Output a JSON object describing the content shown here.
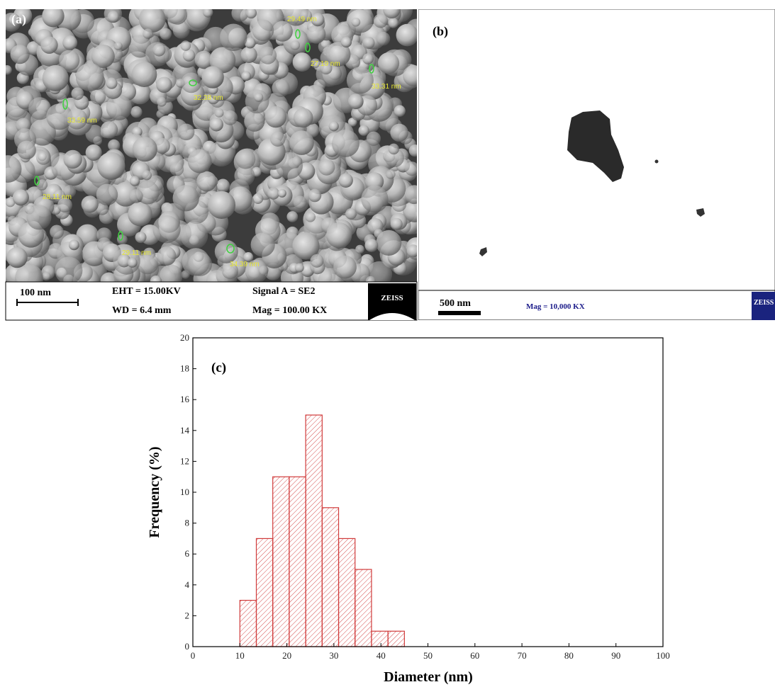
{
  "panels": {
    "a": {
      "label": "(a)",
      "measurements": [
        "29.49 nm",
        "27.19 nm",
        "32.38 nm",
        "33.31 nm",
        "33.59 nm",
        "28.11 nm",
        "29.11 nm",
        "34.39 nm"
      ],
      "scale_bar": "100 nm",
      "eht": "EHT = 15.00KV",
      "signal": "Signal A = SE2",
      "wd": "WD = 6.4 mm",
      "mag": "Mag = 100.00 KX",
      "logo": "ZEISS"
    },
    "b": {
      "label": "(b)",
      "scale_bar": "500 nm",
      "mag": "Mag = 10,000 KX",
      "logo": "ZEISS"
    }
  },
  "chart_data": {
    "type": "histogram",
    "label": "(c)",
    "x_label": "Diameter (nm)",
    "y_label": "Frequency (%)",
    "bins": [
      10,
      13.5,
      17,
      20.5,
      24,
      27.5,
      31,
      34.5,
      38,
      41.5,
      45
    ],
    "values": [
      3,
      7,
      11,
      11,
      15,
      9,
      7,
      5,
      1,
      1
    ],
    "color": "#d03a3a",
    "xlim": [
      0,
      100
    ],
    "xticks": [
      0,
      10,
      20,
      30,
      40,
      50,
      60,
      70,
      80,
      90,
      100
    ],
    "ylim": [
      0,
      20
    ],
    "yticks": [
      0,
      2,
      4,
      6,
      8,
      10,
      12,
      14,
      16,
      18,
      20
    ]
  }
}
